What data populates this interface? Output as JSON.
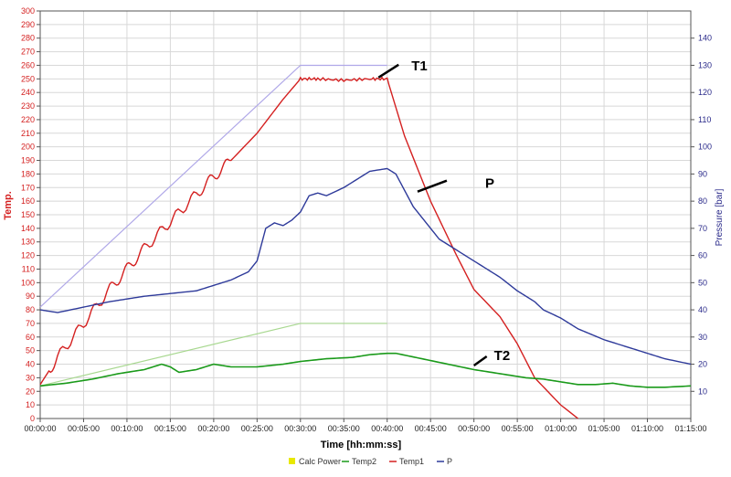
{
  "chart_data": {
    "type": "line",
    "title": "",
    "xlabel": "Time [hh:mm:ss]",
    "ylabel_left": "Temp.",
    "ylabel_right": "Pressure [bar]",
    "ylim_left": [
      0,
      300
    ],
    "ylim_right": [
      0,
      150
    ],
    "xlim_minutes": [
      0,
      75
    ],
    "x_ticks": [
      "00:00:00",
      "00:05:00",
      "00:10:00",
      "00:15:00",
      "00:20:00",
      "00:25:00",
      "00:30:00",
      "00:35:00",
      "00:40:00",
      "00:45:00",
      "00:50:00",
      "00:55:00",
      "01:00:00",
      "01:05:00",
      "01:10:00",
      "01:15:00"
    ],
    "y_left_ticks": [
      "0",
      "10",
      "20",
      "30",
      "40",
      "50",
      "60",
      "70",
      "80",
      "90",
      "100",
      "110",
      "120",
      "130",
      "140",
      "150",
      "160",
      "170",
      "180",
      "190",
      "200",
      "210",
      "220",
      "230",
      "240",
      "250",
      "260",
      "270",
      "280",
      "290",
      "300"
    ],
    "y_right_ticks": [
      "10",
      "20",
      "30",
      "40",
      "50",
      "60",
      "70",
      "80",
      "90",
      "100",
      "110",
      "120",
      "130",
      "140"
    ],
    "colors": {
      "left_axis": "#d42020",
      "right_axis": "#2a2a8a",
      "temp1": "#d42020",
      "temp2": "#1a9a1a",
      "p": "#2e3a9a",
      "calc_power": "#e8e800",
      "setpoint_t1": "#b0a8e8",
      "setpoint_t2": "#a8d890",
      "grid": "#d8d8d8"
    },
    "series": [
      {
        "name": "Temp1",
        "axis": "left",
        "x": [
          0,
          2,
          5,
          8,
          10,
          12,
          15,
          18,
          20,
          22,
          25,
          28,
          30,
          32,
          35,
          38,
          40,
          42,
          45,
          48,
          50,
          53,
          55,
          57,
          60,
          62
        ],
        "y": [
          25,
          45,
          70,
          95,
          110,
          125,
          145,
          165,
          178,
          190,
          210,
          235,
          250,
          250,
          249,
          250,
          250,
          208,
          160,
          120,
          95,
          75,
          55,
          30,
          10,
          0
        ]
      },
      {
        "name": "Temp2",
        "axis": "left",
        "x": [
          0,
          3,
          6,
          9,
          12,
          14,
          15,
          16,
          18,
          20,
          22,
          25,
          28,
          30,
          33,
          36,
          38,
          40,
          41,
          44,
          47,
          50,
          53,
          56,
          58,
          60,
          62,
          64,
          66,
          68,
          70,
          72,
          75
        ],
        "y": [
          24,
          26,
          29,
          33,
          36,
          40,
          38,
          34,
          36,
          40,
          38,
          38,
          40,
          42,
          44,
          45,
          47,
          48,
          48,
          44,
          40,
          36,
          33,
          30,
          29,
          27,
          25,
          25,
          26,
          24,
          23,
          23,
          24
        ]
      },
      {
        "name": "P",
        "axis": "right",
        "x": [
          0,
          2,
          5,
          8,
          10,
          12,
          15,
          18,
          20,
          22,
          24,
          25,
          26,
          27,
          28,
          29,
          30,
          31,
          32,
          33,
          35,
          38,
          40,
          41,
          43,
          46,
          50,
          53,
          55,
          57,
          58,
          60,
          62,
          65,
          68,
          70,
          72,
          75
        ],
        "y": [
          40,
          39,
          41,
          43,
          44,
          45,
          46,
          47,
          49,
          51,
          54,
          58,
          70,
          72,
          71,
          73,
          76,
          82,
          83,
          82,
          85,
          91,
          92,
          90,
          78,
          66,
          58,
          52,
          47,
          43,
          40,
          37,
          33,
          29,
          26,
          24,
          22,
          20
        ]
      },
      {
        "name": "Calc Power",
        "axis": "left",
        "x": [],
        "y": []
      }
    ],
    "setpoints": [
      {
        "name": "T1 setpoint",
        "axis": "left",
        "x": [
          0,
          30,
          40
        ],
        "y": [
          82,
          260,
          260
        ]
      },
      {
        "name": "T2 setpoint",
        "axis": "left",
        "x": [
          0,
          30,
          40
        ],
        "y": [
          24,
          70,
          70
        ]
      }
    ],
    "annotations": [
      {
        "text": "T1",
        "x_min": 39,
        "y_left": 251
      },
      {
        "text": "P",
        "x_min": 43.5,
        "y_left": 167
      },
      {
        "text": "T2",
        "x_min": 50,
        "y_left": 39
      }
    ],
    "legend": [
      "Calc Power",
      "Temp2",
      "Temp1",
      "P"
    ],
    "legend_position": "bottom"
  }
}
